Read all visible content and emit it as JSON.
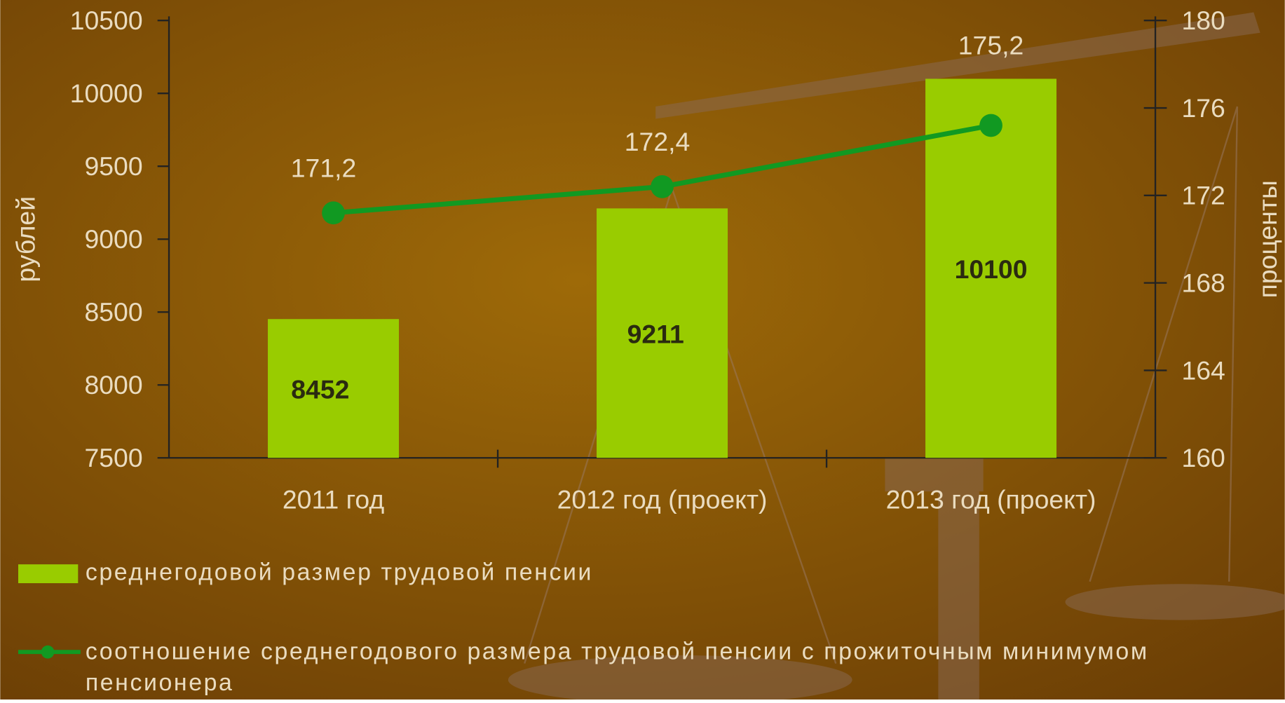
{
  "chart_data": {
    "type": "bar-line",
    "categories": [
      "2011 год",
      "2012 год (проект)",
      "2013 год (проект)"
    ],
    "series": [
      {
        "name": "среднегодовой размер трудовой пенсии",
        "type": "bar",
        "color": "#99cc00",
        "values": [
          8452,
          9211,
          10100
        ]
      },
      {
        "name": "соотношение среднегодового размера трудовой пенсии с прожиточным минимумом пенсионера",
        "type": "line",
        "axis": "y2",
        "color": "#119922",
        "values": [
          171.2,
          172.4,
          175.2
        ],
        "value_labels": [
          "171,2",
          "172,4",
          "175,2"
        ]
      }
    ],
    "y_label": "рублей",
    "y2_label": "проценты",
    "ylim": [
      7500,
      10500
    ],
    "yticks": [
      7500,
      8000,
      8500,
      9000,
      9500,
      10000,
      10500
    ],
    "y2lim": [
      160,
      180
    ],
    "y2ticks": [
      160,
      164,
      168,
      172,
      176,
      180
    ]
  }
}
